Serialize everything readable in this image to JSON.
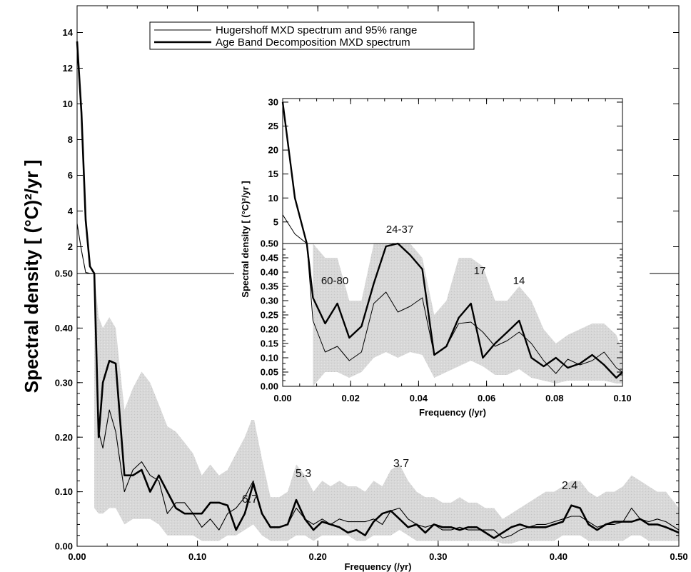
{
  "chart_data": [
    {
      "type": "line",
      "ylabel": "Spectral density  [ (°C)²/yr ]",
      "xlabel": "Frequency  (/yr)",
      "xlim": [
        0,
        0.5
      ],
      "x_ticks": [
        0.0,
        0.1,
        0.2,
        0.3,
        0.4,
        0.5
      ],
      "x_tick_labels": [
        "0.00",
        "0.10",
        "0.20",
        "0.30",
        "0.40",
        "0.50"
      ],
      "y_scale": "split: linear 0–0.50 below, expanded 0.50–15 above",
      "y_ticks_lower": [
        0.0,
        0.1,
        0.2,
        0.3,
        0.4,
        0.5
      ],
      "y_tick_labels_lower": [
        "0.00",
        "0.10",
        "0.20",
        "0.30",
        "0.40",
        "0.50"
      ],
      "y_ticks_upper": [
        2,
        4,
        6,
        8,
        10,
        12,
        14
      ],
      "y_tick_labels_upper": [
        "2",
        "4",
        "6",
        "8",
        "10",
        "12",
        "14"
      ],
      "legend": {
        "placement": "top",
        "entries": [
          "Hugershoff MXD spectrum and 95% range",
          "Age Band Decomposition MXD spectrum"
        ]
      },
      "annotations": [
        "6.7",
        "5.3",
        "3.7",
        "2.4"
      ],
      "series": [
        {
          "name": "Hugershoff MXD spectrum and 95% range",
          "x": [
            0,
            0.0036,
            0.0071,
            0.0107,
            0.0143,
            0.0179,
            0.0214,
            0.0268,
            0.0321,
            0.0393,
            0.0464,
            0.0536,
            0.0607,
            0.0679,
            0.075,
            0.0821,
            0.0893,
            0.0964,
            0.1036,
            0.1107,
            0.1179,
            0.125,
            0.1321,
            0.1393,
            0.1464,
            0.1536,
            0.1607,
            0.1679,
            0.175,
            0.1821,
            0.1893,
            0.1964,
            0.2036,
            0.2107,
            0.2179,
            0.225,
            0.2321,
            0.2393,
            0.2464,
            0.2536,
            0.2607,
            0.2679,
            0.275,
            0.2821,
            0.2893,
            0.2964,
            0.3036,
            0.3107,
            0.3179,
            0.325,
            0.3321,
            0.3393,
            0.3464,
            0.3536,
            0.3607,
            0.3679,
            0.375,
            0.3821,
            0.3893,
            0.3964,
            0.4036,
            0.4107,
            0.4179,
            0.425,
            0.4321,
            0.4393,
            0.4464,
            0.4536,
            0.4607,
            0.4679,
            0.475,
            0.4821,
            0.4893,
            0.5
          ],
          "y": [
            3.3,
            1.8,
            0.56,
            0.51,
            0.5,
            0.21,
            0.18,
            0.25,
            0.21,
            0.1,
            0.14,
            0.155,
            0.13,
            0.12,
            0.06,
            0.08,
            0.08,
            0.06,
            0.035,
            0.05,
            0.03,
            0.06,
            0.07,
            0.09,
            0.12,
            0.06,
            0.035,
            0.035,
            0.04,
            0.07,
            0.05,
            0.04,
            0.05,
            0.04,
            0.05,
            0.045,
            0.045,
            0.045,
            0.05,
            0.04,
            0.065,
            0.07,
            0.05,
            0.04,
            0.035,
            0.04,
            0.03,
            0.03,
            0.035,
            0.03,
            0.03,
            0.03,
            0.03,
            0.015,
            0.02,
            0.03,
            0.035,
            0.04,
            0.04,
            0.045,
            0.05,
            0.055,
            0.055,
            0.045,
            0.035,
            0.04,
            0.04,
            0.045,
            0.07,
            0.05,
            0.045,
            0.05,
            0.045,
            0.03
          ]
        },
        {
          "name": "Age Band Decomposition MXD spectrum",
          "x": [
            0,
            0.0036,
            0.0071,
            0.0107,
            0.0143,
            0.0179,
            0.0214,
            0.0268,
            0.0321,
            0.0393,
            0.0464,
            0.0536,
            0.0607,
            0.0679,
            0.075,
            0.0821,
            0.0893,
            0.0964,
            0.1036,
            0.1107,
            0.1179,
            0.125,
            0.1321,
            0.1393,
            0.1464,
            0.1536,
            0.1607,
            0.1679,
            0.175,
            0.1821,
            0.1893,
            0.1964,
            0.2036,
            0.2107,
            0.2179,
            0.225,
            0.2321,
            0.2393,
            0.2464,
            0.2536,
            0.2607,
            0.2679,
            0.275,
            0.2821,
            0.2893,
            0.2964,
            0.3036,
            0.3107,
            0.3179,
            0.325,
            0.3321,
            0.3393,
            0.3464,
            0.3536,
            0.3607,
            0.3679,
            0.375,
            0.3821,
            0.3893,
            0.3964,
            0.4036,
            0.4107,
            0.4179,
            0.425,
            0.4321,
            0.4393,
            0.4464,
            0.4536,
            0.4607,
            0.4679,
            0.475,
            0.4821,
            0.4893,
            0.5
          ],
          "y": [
            13.5,
            9.5,
            3.5,
            0.9,
            0.5,
            0.2,
            0.3,
            0.34,
            0.335,
            0.13,
            0.13,
            0.14,
            0.1,
            0.13,
            0.1,
            0.07,
            0.06,
            0.06,
            0.06,
            0.08,
            0.08,
            0.075,
            0.03,
            0.06,
            0.115,
            0.06,
            0.035,
            0.035,
            0.04,
            0.085,
            0.05,
            0.03,
            0.045,
            0.04,
            0.035,
            0.025,
            0.03,
            0.02,
            0.045,
            0.06,
            0.065,
            0.05,
            0.035,
            0.04,
            0.025,
            0.04,
            0.035,
            0.035,
            0.03,
            0.035,
            0.035,
            0.025,
            0.015,
            0.025,
            0.035,
            0.04,
            0.035,
            0.035,
            0.035,
            0.04,
            0.045,
            0.075,
            0.07,
            0.04,
            0.03,
            0.04,
            0.045,
            0.045,
            0.045,
            0.05,
            0.04,
            0.04,
            0.035,
            0.025
          ]
        }
      ],
      "range_band": {
        "name": "95% range",
        "x": [
          0.0143,
          0.0179,
          0.0214,
          0.0268,
          0.0321,
          0.0393,
          0.0464,
          0.0536,
          0.0607,
          0.0679,
          0.075,
          0.0821,
          0.0893,
          0.0964,
          0.1036,
          0.1107,
          0.1179,
          0.125,
          0.1321,
          0.1393,
          0.1464,
          0.1536,
          0.1607,
          0.1679,
          0.175,
          0.1821,
          0.1893,
          0.1964,
          0.2036,
          0.2107,
          0.2179,
          0.225,
          0.2321,
          0.2393,
          0.2464,
          0.2536,
          0.2607,
          0.2679,
          0.275,
          0.2821,
          0.2893,
          0.2964,
          0.3036,
          0.3107,
          0.3179,
          0.325,
          0.3321,
          0.3393,
          0.3464,
          0.3536,
          0.3607,
          0.3679,
          0.375,
          0.3821,
          0.3893,
          0.3964,
          0.4036,
          0.4107,
          0.4179,
          0.425,
          0.4321,
          0.4393,
          0.4464,
          0.4536,
          0.4607,
          0.4679,
          0.475,
          0.4821,
          0.4893,
          0.5
        ],
        "lower": [
          0.07,
          0.06,
          0.06,
          0.07,
          0.07,
          0.04,
          0.05,
          0.05,
          0.05,
          0.04,
          0.02,
          0.02,
          0.02,
          0.02,
          0.01,
          0.01,
          0.01,
          0.02,
          0.02,
          0.03,
          0.04,
          0.02,
          0.01,
          0.01,
          0.01,
          0.02,
          0.02,
          0.01,
          0.02,
          0.02,
          0.02,
          0.02,
          0.01,
          0.01,
          0.02,
          0.02,
          0.02,
          0.03,
          0.02,
          0.01,
          0.01,
          0.01,
          0.01,
          0.01,
          0.01,
          0.01,
          0.01,
          0.01,
          0.01,
          0.005,
          0.005,
          0.01,
          0.01,
          0.01,
          0.01,
          0.01,
          0.02,
          0.02,
          0.02,
          0.01,
          0.01,
          0.01,
          0.01,
          0.01,
          0.02,
          0.02,
          0.01,
          0.01,
          0.01,
          0.01
        ],
        "upper": [
          0.5,
          0.42,
          0.4,
          0.42,
          0.4,
          0.25,
          0.29,
          0.32,
          0.3,
          0.26,
          0.22,
          0.21,
          0.19,
          0.17,
          0.13,
          0.15,
          0.13,
          0.14,
          0.17,
          0.2,
          0.24,
          0.16,
          0.09,
          0.09,
          0.1,
          0.15,
          0.13,
          0.1,
          0.12,
          0.11,
          0.12,
          0.11,
          0.11,
          0.1,
          0.12,
          0.11,
          0.14,
          0.15,
          0.12,
          0.1,
          0.09,
          0.09,
          0.08,
          0.08,
          0.09,
          0.08,
          0.08,
          0.07,
          0.07,
          0.05,
          0.06,
          0.07,
          0.08,
          0.09,
          0.1,
          0.1,
          0.11,
          0.12,
          0.12,
          0.1,
          0.09,
          0.1,
          0.1,
          0.11,
          0.13,
          0.12,
          0.11,
          0.1,
          0.1,
          0.07
        ]
      }
    },
    {
      "type": "line",
      "ylabel": "Spectral density  [ (°C)²/yr ]",
      "xlabel": "Frequency  (/yr)",
      "xlim": [
        0,
        0.1
      ],
      "x_ticks": [
        0.0,
        0.02,
        0.04,
        0.06,
        0.08,
        0.1
      ],
      "x_tick_labels": [
        "0.00",
        "0.02",
        "0.04",
        "0.06",
        "0.08",
        "0.10"
      ],
      "y_scale": "split: linear 0–0.50 below, expanded 0.50–30 above",
      "y_ticks_lower": [
        0.0,
        0.05,
        0.1,
        0.15,
        0.2,
        0.25,
        0.3,
        0.35,
        0.4,
        0.45,
        0.5
      ],
      "y_tick_labels_lower": [
        "0.00",
        "0.05",
        "0.10",
        "0.15",
        "0.20",
        "0.25",
        "0.30",
        "0.35",
        "0.40",
        "0.45",
        "0.50"
      ],
      "y_ticks_upper": [
        5,
        10,
        15,
        20,
        25,
        30
      ],
      "y_tick_labels_upper": [
        "5",
        "10",
        "15",
        "20",
        "25",
        "30"
      ],
      "annotations": [
        "24-37",
        "60-80",
        "17",
        "14"
      ],
      "series": [
        {
          "name": "Hugershoff MXD spectrum and 95% range",
          "x": [
            0,
            0.0036,
            0.0071,
            0.0089,
            0.0125,
            0.0161,
            0.0196,
            0.0232,
            0.0268,
            0.0304,
            0.0339,
            0.0375,
            0.0411,
            0.0446,
            0.0482,
            0.0518,
            0.0554,
            0.0589,
            0.0625,
            0.0661,
            0.0696,
            0.0732,
            0.0768,
            0.0804,
            0.0839,
            0.0875,
            0.0911,
            0.0946,
            0.0982,
            0.1
          ],
          "y": [
            6.5,
            2.5,
            0.5,
            0.23,
            0.12,
            0.14,
            0.09,
            0.12,
            0.29,
            0.33,
            0.26,
            0.28,
            0.31,
            0.11,
            0.14,
            0.22,
            0.225,
            0.19,
            0.14,
            0.16,
            0.19,
            0.15,
            0.09,
            0.045,
            0.095,
            0.075,
            0.09,
            0.12,
            0.065,
            0.05
          ]
        },
        {
          "name": "Age Band Decomposition MXD spectrum",
          "x": [
            0,
            0.0036,
            0.0071,
            0.0089,
            0.0125,
            0.0161,
            0.0196,
            0.0232,
            0.0268,
            0.0304,
            0.0339,
            0.0375,
            0.0411,
            0.0446,
            0.0482,
            0.0518,
            0.0554,
            0.0589,
            0.0625,
            0.0661,
            0.0696,
            0.0732,
            0.0768,
            0.0804,
            0.0839,
            0.0875,
            0.0911,
            0.0946,
            0.0982,
            0.1
          ],
          "y": [
            30,
            10,
            0.5,
            0.31,
            0.22,
            0.29,
            0.17,
            0.21,
            0.36,
            0.49,
            0.5,
            0.46,
            0.41,
            0.11,
            0.14,
            0.24,
            0.29,
            0.1,
            0.15,
            0.19,
            0.23,
            0.1,
            0.07,
            0.1,
            0.065,
            0.08,
            0.11,
            0.075,
            0.03,
            0.05
          ]
        }
      ],
      "range_band": {
        "name": "95% range",
        "x": [
          0.0089,
          0.0125,
          0.0161,
          0.0196,
          0.0232,
          0.0268,
          0.0304,
          0.0339,
          0.0375,
          0.0411,
          0.0446,
          0.0482,
          0.0518,
          0.0554,
          0.0589,
          0.0625,
          0.0661,
          0.0696,
          0.0732,
          0.0768,
          0.0804,
          0.0839,
          0.0875,
          0.0911,
          0.0946,
          0.0982,
          0.1
        ],
        "lower": [
          0.0,
          0.05,
          0.05,
          0.03,
          0.05,
          0.1,
          0.12,
          0.1,
          0.12,
          0.11,
          0.03,
          0.05,
          0.07,
          0.09,
          0.07,
          0.04,
          0.04,
          0.06,
          0.03,
          0.02,
          0.01,
          0.02,
          0.02,
          0.02,
          0.02,
          0.01,
          0.01
        ],
        "upper": [
          0.5,
          0.45,
          0.45,
          0.3,
          0.3,
          0.5,
          0.5,
          0.5,
          0.5,
          0.45,
          0.25,
          0.3,
          0.45,
          0.45,
          0.42,
          0.3,
          0.3,
          0.35,
          0.3,
          0.2,
          0.15,
          0.18,
          0.2,
          0.22,
          0.22,
          0.18,
          0.12
        ]
      }
    }
  ]
}
